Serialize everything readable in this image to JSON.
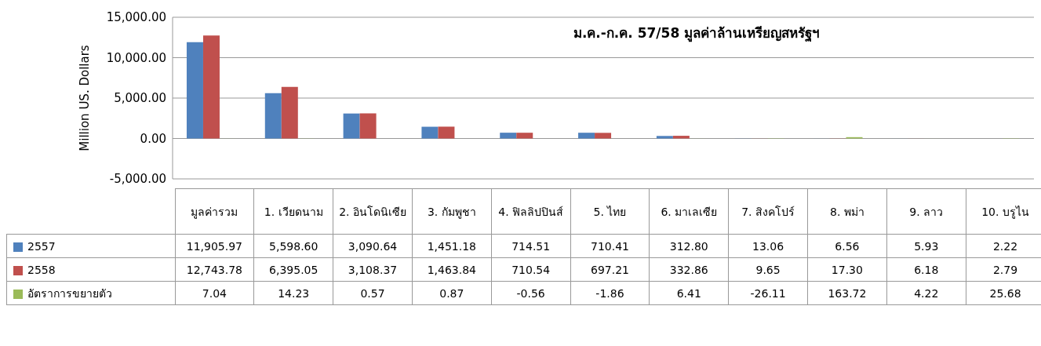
{
  "chart_data": {
    "type": "bar",
    "title": "ม.ค.-ก.ค. 57/58 มูลค่าล้านเหรียญสหรัฐฯ",
    "ylabel": "Million US. Dollars",
    "categories": [
      "มูลค่ารวม",
      "1. เวียดนาม",
      "2. อินโดนิเซีย",
      "3. กัมพูชา",
      "4. ฟิลลิปปินส์",
      "5. ไทย",
      "6. มาเลเซีย",
      "7. สิงคโปร์",
      "8. พม่า",
      "9. ลาว",
      "10. บรูไน"
    ],
    "series": [
      {
        "name": "2557",
        "color": "#4f81bd",
        "values": [
          11905.97,
          5598.6,
          3090.64,
          1451.18,
          714.51,
          710.41,
          312.8,
          13.06,
          6.56,
          5.93,
          2.22
        ],
        "value_labels": [
          "11,905.97",
          "5,598.60",
          "3,090.64",
          "1,451.18",
          "714.51",
          "710.41",
          "312.80",
          "13.06",
          "6.56",
          "5.93",
          "2.22"
        ]
      },
      {
        "name": "2558",
        "color": "#c0504d",
        "values": [
          12743.78,
          6395.05,
          3108.37,
          1463.84,
          710.54,
          697.21,
          332.86,
          9.65,
          17.3,
          6.18,
          2.79
        ],
        "value_labels": [
          "12,743.78",
          "6,395.05",
          "3,108.37",
          "1,463.84",
          "710.54",
          "697.21",
          "332.86",
          "9.65",
          "17.30",
          "6.18",
          "2.79"
        ]
      },
      {
        "name": "อัตราการขยายตัว",
        "color": "#9bbb59",
        "values": [
          7.04,
          14.23,
          0.57,
          0.87,
          -0.56,
          -1.86,
          6.41,
          -26.11,
          163.72,
          4.22,
          25.68
        ],
        "value_labels": [
          "7.04",
          "14.23",
          "0.57",
          "0.87",
          "-0.56",
          "-1.86",
          "6.41",
          "-26.11",
          "163.72",
          "4.22",
          "25.68"
        ]
      }
    ],
    "ylim": [
      -5000,
      15000
    ],
    "yticks": [
      {
        "value": -5000,
        "label": "-5,000.00"
      },
      {
        "value": 0,
        "label": "0.00"
      },
      {
        "value": 5000,
        "label": "5,000.00"
      },
      {
        "value": 10000,
        "label": "10,000.00"
      },
      {
        "value": 15000,
        "label": "15,000.00"
      }
    ],
    "grid": "y",
    "legend": "bottom"
  }
}
